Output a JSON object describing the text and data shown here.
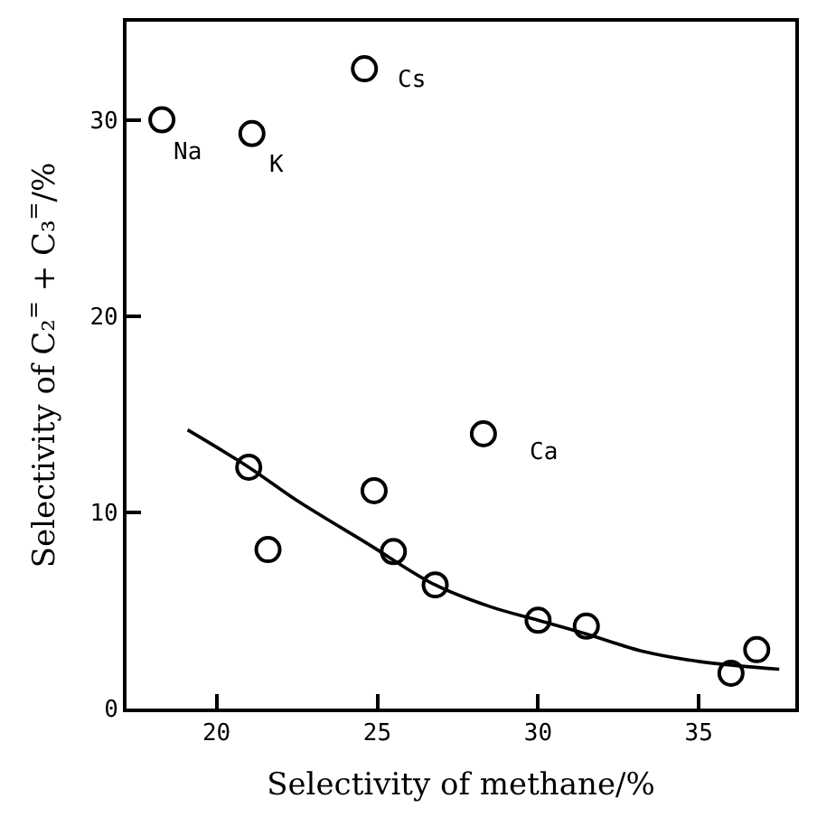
{
  "chart_data": {
    "type": "scatter",
    "xlabel": "Selectivity of methane/%",
    "ylabel": "Selectivity of C₂$^{=}$ + C₃$^{=}$/%",
    "xlim": [
      17.2,
      38
    ],
    "ylim": [
      0,
      35
    ],
    "xticks": [
      20,
      25,
      30,
      35
    ],
    "yticks": [
      0,
      10,
      20,
      30
    ],
    "series": [
      {
        "marker": "circle",
        "color": "#000000",
        "x": [
          18.3,
          21.1,
          24.6,
          28.3,
          21.0,
          21.6,
          24.9,
          25.5,
          26.8,
          30.0,
          31.5,
          36.0,
          36.8
        ],
        "values": [
          30.0,
          29.3,
          32.6,
          14.0,
          12.3,
          8.1,
          11.1,
          8.0,
          6.3,
          4.5,
          4.2,
          1.8,
          3.0
        ]
      },
      {
        "type": "line",
        "color": "#000000",
        "line_style": "solid",
        "x": [
          19.1,
          21.0,
          22.5,
          24.7,
          26.8,
          28.5,
          30.0,
          31.5,
          33.3,
          35.0,
          37.5
        ],
        "values": [
          14.2,
          12.3,
          10.6,
          8.4,
          6.3,
          5.2,
          4.5,
          3.8,
          2.9,
          2.4,
          2.0
        ]
      }
    ],
    "annotations": [
      {
        "text": "Na",
        "x": 18.3,
        "y": 30.0
      },
      {
        "text": "K",
        "x": 21.1,
        "y": 29.3
      },
      {
        "text": "Cs",
        "x": 24.6,
        "y": 32.6
      },
      {
        "text": "Ca",
        "x": 28.3,
        "y": 14.0
      }
    ]
  }
}
